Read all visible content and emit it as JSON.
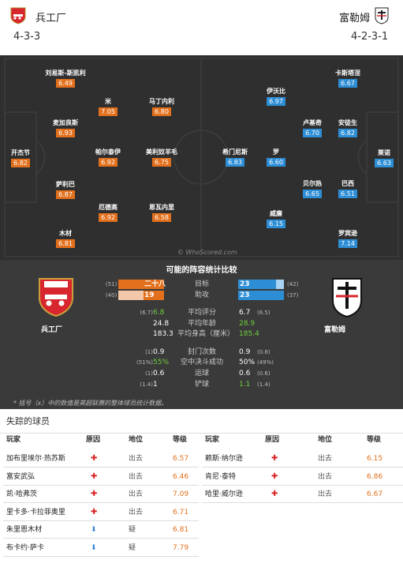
{
  "home": {
    "name": "兵工厂",
    "formation": "4-3-3",
    "color": "#e2701c"
  },
  "away": {
    "name": "富勒姆",
    "formation": "4-2-3-1",
    "color": "#2d8ed6"
  },
  "pitch": {
    "watermark": "© WhoScored.com",
    "home_players": [
      {
        "name": "开杰节",
        "rating": "6.82"
      },
      {
        "name": "刘易斯-斯凯利",
        "rating": "6.49"
      },
      {
        "name": "麦加良斯",
        "rating": "6.93"
      },
      {
        "name": "萨利巴",
        "rating": "6.87"
      },
      {
        "name": "木材",
        "rating": "6.81"
      },
      {
        "name": "米",
        "rating": "7.05"
      },
      {
        "name": "帕尔泰伊",
        "rating": "6.92"
      },
      {
        "name": "厄德高",
        "rating": "6.92"
      },
      {
        "name": "马丁内利",
        "rating": "6.80"
      },
      {
        "name": "美利奴羊毛",
        "rating": "6.75"
      },
      {
        "name": "恩瓦内里",
        "rating": "6.58"
      }
    ],
    "away_players": [
      {
        "name": "卡斯塔涅",
        "rating": "6.67"
      },
      {
        "name": "伊沃比",
        "rating": "6.97"
      },
      {
        "name": "卢基奇",
        "rating": "6.70"
      },
      {
        "name": "安徒生",
        "rating": "6.82"
      },
      {
        "name": "希门尼斯",
        "rating": "6.83"
      },
      {
        "name": "罗",
        "rating": "6.60"
      },
      {
        "name": "莱诺",
        "rating": "6.63"
      },
      {
        "name": "贝尔热",
        "rating": "6.65"
      },
      {
        "name": "巴西",
        "rating": "6.51"
      },
      {
        "name": "威廉",
        "rating": "6.15"
      },
      {
        "name": "罗宾逊",
        "rating": "7.14"
      }
    ]
  },
  "comparison": {
    "title": "可能的阵容统计比较",
    "home_label": "兵工厂",
    "away_label": "富勒姆",
    "rows_bar": [
      {
        "label": "目标",
        "home_small": "(51)",
        "home_val": "二十八",
        "away_val": "23",
        "away_small": "(42)",
        "home_fill": 1.0,
        "away_fill": 0.82
      },
      {
        "label": "助攻",
        "home_small": "(40)",
        "home_val": "19",
        "away_val": "23",
        "away_small": "(37)",
        "home_fill": 0.45,
        "away_fill": 1.0
      }
    ],
    "rows_text": [
      {
        "label": "平均评分",
        "home_small": "(6.7)",
        "home_val": "6.8",
        "away_val": "6.7",
        "away_small": "(6.5)",
        "home_green": true,
        "away_green": false
      },
      {
        "label": "平均年龄",
        "home_small": "",
        "home_val": "24.8",
        "away_val": "28.9",
        "away_small": "",
        "home_green": false,
        "away_green": true
      },
      {
        "label": "平均身高（厘米）",
        "home_small": "",
        "home_val": "183.3",
        "away_val": "185.4",
        "away_small": "",
        "home_green": false,
        "away_green": true
      },
      {
        "label": "封门次数",
        "home_small": "(1)",
        "home_val": "0.9",
        "away_val": "0.9",
        "away_small": "(0.8)",
        "home_green": false,
        "away_green": false
      },
      {
        "label": "空中决斗成功",
        "home_small": "(51%)",
        "home_val": "55%",
        "away_val": "50%",
        "away_small": "(49%)",
        "home_green": true,
        "away_green": false
      },
      {
        "label": "运球",
        "home_small": "(1)",
        "home_val": "0.6",
        "away_val": "0.6",
        "away_small": "(0.6)",
        "home_green": false,
        "away_green": false
      },
      {
        "label": "铲球",
        "home_small": "(1.4)",
        "home_val": "1",
        "away_val": "1.1",
        "away_small": "(1.4)",
        "home_green": false,
        "away_green": true
      }
    ],
    "note": "* 括号（x）中的数值是英超联赛的整体球员统计数据。"
  },
  "missing": {
    "title": "失踪的球员",
    "headers": {
      "player": "玩家",
      "reason": "原因",
      "status": "地位",
      "rating": "等级"
    },
    "home": [
      {
        "player": "加布里埃尔·热苏斯",
        "reason_icon": "injury-cross-icon",
        "status": "出去",
        "rating": "6.57"
      },
      {
        "player": "富安武弘",
        "reason_icon": "injury-cross-icon",
        "status": "出去",
        "rating": "6.46"
      },
      {
        "player": "凯·哈弗茨",
        "reason_icon": "injury-cross-icon",
        "status": "出去",
        "rating": "7.09"
      },
      {
        "player": "里卡多·卡拉菲奥里",
        "reason_icon": "injury-cross-icon",
        "status": "出去",
        "rating": "6.71"
      },
      {
        "player": "朱里恩木材",
        "reason_icon": "doubtful-arrow-icon",
        "status": "疑",
        "rating": "6.81"
      },
      {
        "player": "布卡约·萨卡",
        "reason_icon": "doubtful-arrow-icon",
        "status": "疑",
        "rating": "7.79"
      }
    ],
    "away": [
      {
        "player": "赖斯·纳尔逊",
        "reason_icon": "injury-cross-icon",
        "status": "出去",
        "rating": "6.15"
      },
      {
        "player": "肯尼·泰特",
        "reason_icon": "injury-cross-icon",
        "status": "出去",
        "rating": "6.86"
      },
      {
        "player": "哈里·威尔逊",
        "reason_icon": "injury-cross-icon",
        "status": "出去",
        "rating": "6.67"
      }
    ]
  }
}
